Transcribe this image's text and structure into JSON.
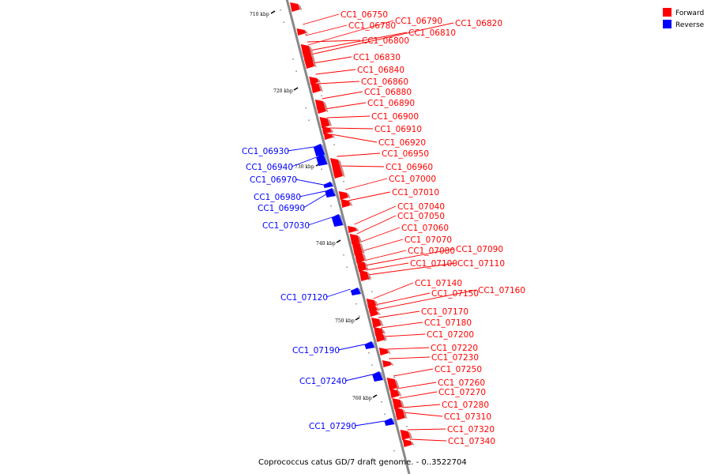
{
  "caption": "Coprococcus catus GD/7 draft genome. - 0..3522704",
  "legend": [
    {
      "label": "Forward",
      "color": "#ff0000"
    },
    {
      "label": "Reverse",
      "color": "#0000ff"
    }
  ],
  "ticks": [
    "710 kbp",
    "720 kbp",
    "730 kbp",
    "740 kbp",
    "750 kbp",
    "760 kbp"
  ],
  "colors": {
    "forward": "#ff0000",
    "reverse": "#0000ff",
    "backbone": "#888888"
  },
  "genes": [
    {
      "id": "CC1_06750",
      "strand": "forward"
    },
    {
      "id": "CC1_06780",
      "strand": "forward"
    },
    {
      "id": "CC1_06790",
      "strand": "forward"
    },
    {
      "id": "CC1_06820",
      "strand": "forward"
    },
    {
      "id": "CC1_06810",
      "strand": "forward"
    },
    {
      "id": "CC1_06800",
      "strand": "forward"
    },
    {
      "id": "CC1_06830",
      "strand": "forward"
    },
    {
      "id": "CC1_06840",
      "strand": "forward"
    },
    {
      "id": "CC1_06860",
      "strand": "forward"
    },
    {
      "id": "CC1_06880",
      "strand": "forward"
    },
    {
      "id": "CC1_06890",
      "strand": "forward"
    },
    {
      "id": "CC1_06900",
      "strand": "forward"
    },
    {
      "id": "CC1_06910",
      "strand": "forward"
    },
    {
      "id": "CC1_06920",
      "strand": "forward"
    },
    {
      "id": "CC1_06950",
      "strand": "forward"
    },
    {
      "id": "CC1_06960",
      "strand": "forward"
    },
    {
      "id": "CC1_07000",
      "strand": "forward"
    },
    {
      "id": "CC1_07010",
      "strand": "forward"
    },
    {
      "id": "CC1_07040",
      "strand": "forward"
    },
    {
      "id": "CC1_07050",
      "strand": "forward"
    },
    {
      "id": "CC1_07060",
      "strand": "forward"
    },
    {
      "id": "CC1_07070",
      "strand": "forward"
    },
    {
      "id": "CC1_07080",
      "strand": "forward"
    },
    {
      "id": "CC1_07090",
      "strand": "forward"
    },
    {
      "id": "CC1_07100",
      "strand": "forward"
    },
    {
      "id": "CC1_07110",
      "strand": "forward"
    },
    {
      "id": "CC1_07140",
      "strand": "forward"
    },
    {
      "id": "CC1_07150",
      "strand": "forward"
    },
    {
      "id": "CC1_07160",
      "strand": "forward"
    },
    {
      "id": "CC1_07170",
      "strand": "forward"
    },
    {
      "id": "CC1_07180",
      "strand": "forward"
    },
    {
      "id": "CC1_07200",
      "strand": "forward"
    },
    {
      "id": "CC1_07220",
      "strand": "forward"
    },
    {
      "id": "CC1_07230",
      "strand": "forward"
    },
    {
      "id": "CC1_07250",
      "strand": "forward"
    },
    {
      "id": "CC1_07260",
      "strand": "forward"
    },
    {
      "id": "CC1_07270",
      "strand": "forward"
    },
    {
      "id": "CC1_07280",
      "strand": "forward"
    },
    {
      "id": "CC1_07310",
      "strand": "forward"
    },
    {
      "id": "CC1_07320",
      "strand": "forward"
    },
    {
      "id": "CC1_07340",
      "strand": "forward"
    },
    {
      "id": "CC1_06930",
      "strand": "reverse"
    },
    {
      "id": "CC1_06940",
      "strand": "reverse"
    },
    {
      "id": "CC1_06970",
      "strand": "reverse"
    },
    {
      "id": "CC1_06980",
      "strand": "reverse"
    },
    {
      "id": "CC1_06990",
      "strand": "reverse"
    },
    {
      "id": "CC1_07030",
      "strand": "reverse"
    },
    {
      "id": "CC1_07120",
      "strand": "reverse"
    },
    {
      "id": "CC1_07190",
      "strand": "reverse"
    },
    {
      "id": "CC1_07240",
      "strand": "reverse"
    },
    {
      "id": "CC1_07290",
      "strand": "reverse"
    }
  ]
}
